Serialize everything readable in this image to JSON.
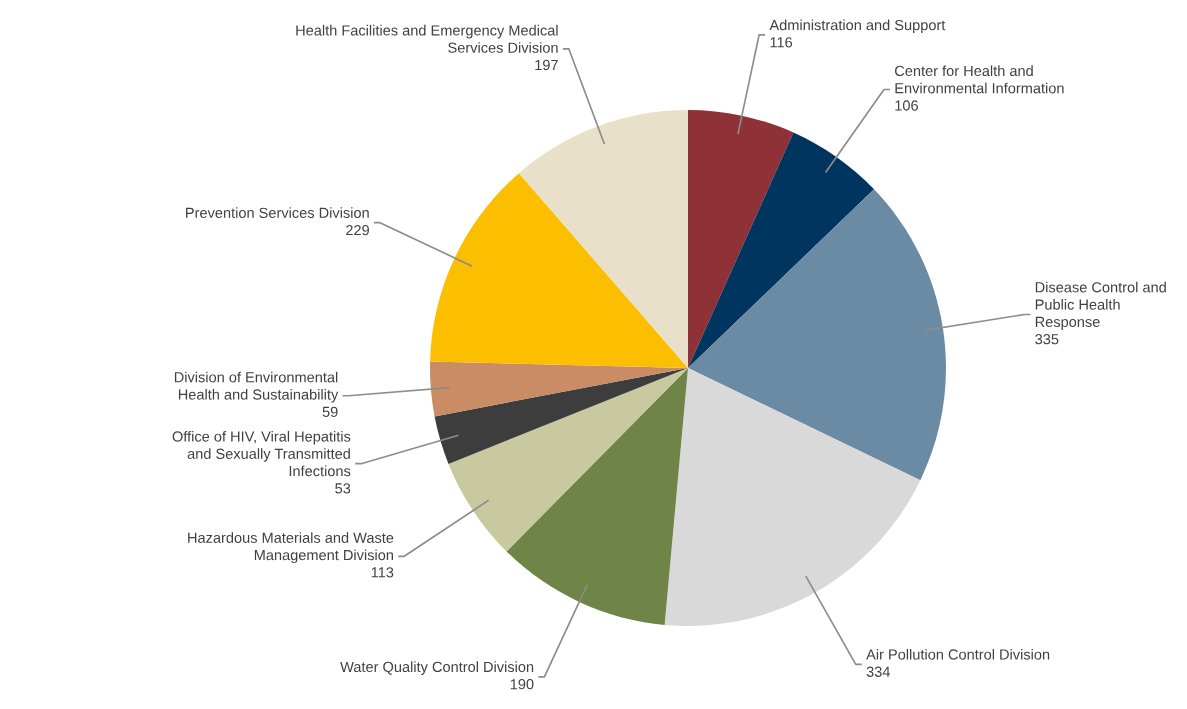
{
  "chart_data": {
    "type": "pie",
    "data_labels": true,
    "categories": [
      "Administration and Support",
      "Center for Health and\nEnvironmental Information",
      "Disease Control and\nPublic Health\nResponse",
      "Air Pollution Control Division",
      "Water Quality Control Division",
      "Hazardous Materials and Waste\nManagement Division",
      "Office of HIV, Viral Hepatitis\nand Sexually Transmitted\nInfections",
      "Division of Environmental\nHealth and Sustainability",
      "Prevention Services Division",
      "Health Facilities and Emergency Medical\nServices Division"
    ],
    "values": [
      116,
      106,
      335,
      334,
      190,
      113,
      53,
      59,
      229,
      197
    ],
    "colors": [
      "#8f3237",
      "#003560",
      "#6b8ba4",
      "#d9d9d9",
      "#6f8547",
      "#c9c9a0",
      "#3d3d3d",
      "#c98c65",
      "#fcbf00",
      "#e8e0c8"
    ]
  }
}
